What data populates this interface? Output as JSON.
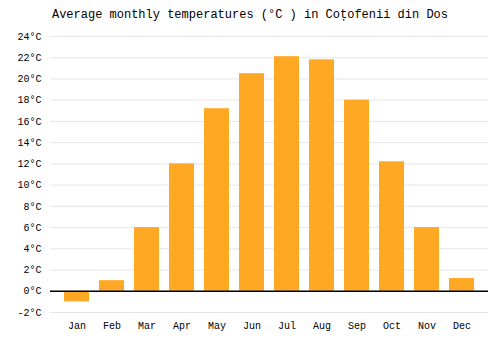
{
  "chart_data": {
    "type": "bar",
    "title": "Average monthly temperatures (°C ) in Coțofenii din Dos",
    "categories": [
      "Jan",
      "Feb",
      "Mar",
      "Apr",
      "May",
      "Jun",
      "Jul",
      "Aug",
      "Sep",
      "Oct",
      "Nov",
      "Dec"
    ],
    "values": [
      -1.0,
      1.0,
      6.0,
      12.0,
      17.2,
      20.5,
      22.1,
      21.8,
      18.0,
      12.2,
      6.0,
      1.2
    ],
    "color": "#FFA824",
    "ylim": [
      -2,
      24
    ],
    "yticks": [
      {
        "value": -2,
        "label": "-2°C"
      },
      {
        "value": 0,
        "label": "0°C"
      },
      {
        "value": 2,
        "label": "2°C"
      },
      {
        "value": 4,
        "label": "4°C"
      },
      {
        "value": 6,
        "label": "6°C"
      },
      {
        "value": 8,
        "label": "8°C"
      },
      {
        "value": 10,
        "label": "10°C"
      },
      {
        "value": 12,
        "label": "12°C"
      },
      {
        "value": 14,
        "label": "14°C"
      },
      {
        "value": 16,
        "label": "16°C"
      },
      {
        "value": 18,
        "label": "18°C"
      },
      {
        "value": 20,
        "label": "20°C"
      },
      {
        "value": 22,
        "label": "22°C"
      },
      {
        "value": 24,
        "label": "24°C"
      }
    ],
    "grid": true
  }
}
